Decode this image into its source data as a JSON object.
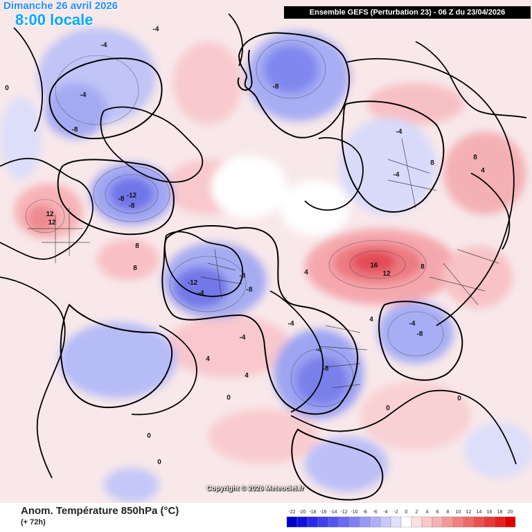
{
  "header": {
    "date_label": "Dimanche 26 avril 2026",
    "time_label": "8:00 locale",
    "run_label": "Ensemble GEFS  (Perturbation 23)  -  06 Z du 23/04/2026"
  },
  "footer": {
    "variable_label": "Anom. Température 850hPa (°C)",
    "lead_label": "(+ 72h)",
    "copyright": "Copyright © 2026 Meteociel.fr"
  },
  "legend": {
    "ticks": [
      "-22",
      "-20",
      "-18",
      "-16",
      "-14",
      "-12",
      "-10",
      "-8",
      "-6",
      "-4",
      "-2",
      "0",
      "2",
      "4",
      "6",
      "8",
      "10",
      "12",
      "14",
      "16",
      "18",
      "20"
    ],
    "colors": [
      "#0000cc",
      "#1010e0",
      "#2a2ae8",
      "#4040ee",
      "#5555f0",
      "#6a6af2",
      "#8080f4",
      "#9898f6",
      "#b0b0f8",
      "#c8c8fa",
      "#e0e0fc",
      "#ffffff",
      "#fde0e0",
      "#fac8c8",
      "#f8b0b0",
      "#f59898",
      "#f28080",
      "#ef6868",
      "#ec5050",
      "#e83838",
      "#e42020",
      "#dd0000"
    ]
  },
  "map": {
    "contour_labels": [
      {
        "text": "-4"
      },
      {
        "text": "-4"
      },
      {
        "text": "-12"
      },
      {
        "text": "-8"
      },
      {
        "text": "12"
      },
      {
        "text": "12"
      },
      {
        "text": "8"
      },
      {
        "text": "8"
      },
      {
        "text": "-4"
      },
      {
        "text": "-8"
      },
      {
        "text": "-8"
      },
      {
        "text": "-8"
      },
      {
        "text": "-12"
      },
      {
        "text": "-4"
      },
      {
        "text": "-8"
      },
      {
        "text": "-8"
      },
      {
        "text": "16"
      },
      {
        "text": "12"
      },
      {
        "text": "8"
      },
      {
        "text": "4"
      },
      {
        "text": "-8"
      },
      {
        "text": "-4"
      },
      {
        "text": "-8"
      },
      {
        "text": "-4"
      },
      {
        "text": "-4"
      },
      {
        "text": "0"
      },
      {
        "text": "0"
      },
      {
        "text": "4"
      },
      {
        "text": "4"
      },
      {
        "text": "0"
      },
      {
        "text": "0"
      },
      {
        "text": "4"
      },
      {
        "text": "8"
      },
      {
        "text": "8"
      },
      {
        "text": "-4"
      },
      {
        "text": "-4"
      },
      {
        "text": "0"
      },
      {
        "text": "4"
      },
      {
        "text": "-4"
      },
      {
        "text": "0"
      }
    ]
  }
}
